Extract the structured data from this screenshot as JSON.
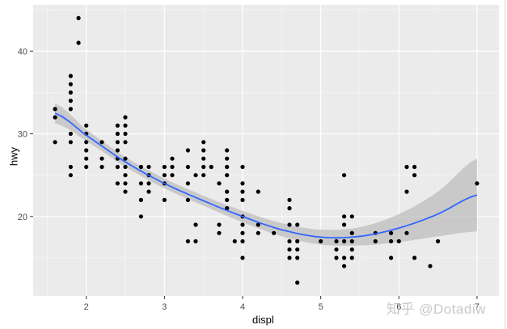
{
  "chart_data": {
    "type": "scatter",
    "title": "",
    "xlabel": "displ",
    "ylabel": "hwy",
    "xlim": [
      1.32,
      7.28
    ],
    "ylim": [
      10.4,
      45.6
    ],
    "x_ticks": [
      2,
      3,
      4,
      5,
      6,
      7
    ],
    "y_ticks": [
      20,
      30,
      40
    ],
    "grid": true,
    "legend": "none",
    "background": "#EBEBEB",
    "point_color": "#000000",
    "smooth_color": "#3366FF",
    "ribbon_color": "#BEBEBE",
    "points": [
      [
        1.6,
        33
      ],
      [
        1.6,
        32
      ],
      [
        1.6,
        29
      ],
      [
        1.8,
        37
      ],
      [
        1.8,
        36
      ],
      [
        1.8,
        35
      ],
      [
        1.8,
        34
      ],
      [
        1.8,
        33
      ],
      [
        1.8,
        30
      ],
      [
        1.8,
        29
      ],
      [
        1.8,
        26
      ],
      [
        1.8,
        25
      ],
      [
        1.9,
        44
      ],
      [
        1.9,
        41
      ],
      [
        2.0,
        31
      ],
      [
        2.0,
        30
      ],
      [
        2.0,
        29
      ],
      [
        2.0,
        28
      ],
      [
        2.0,
        27
      ],
      [
        2.0,
        26
      ],
      [
        2.2,
        29
      ],
      [
        2.2,
        27
      ],
      [
        2.2,
        26
      ],
      [
        2.4,
        31
      ],
      [
        2.4,
        30
      ],
      [
        2.4,
        29
      ],
      [
        2.4,
        28
      ],
      [
        2.4,
        27
      ],
      [
        2.4,
        26
      ],
      [
        2.4,
        24
      ],
      [
        2.5,
        32
      ],
      [
        2.5,
        31
      ],
      [
        2.5,
        30
      ],
      [
        2.5,
        29
      ],
      [
        2.5,
        27
      ],
      [
        2.5,
        26
      ],
      [
        2.5,
        25
      ],
      [
        2.5,
        24
      ],
      [
        2.5,
        23
      ],
      [
        2.7,
        26
      ],
      [
        2.7,
        24
      ],
      [
        2.7,
        22
      ],
      [
        2.7,
        20
      ],
      [
        2.8,
        26
      ],
      [
        2.8,
        25
      ],
      [
        2.8,
        24
      ],
      [
        2.8,
        23
      ],
      [
        3.0,
        26
      ],
      [
        3.0,
        25
      ],
      [
        3.0,
        24
      ],
      [
        3.0,
        22
      ],
      [
        3.1,
        27
      ],
      [
        3.1,
        26
      ],
      [
        3.1,
        25
      ],
      [
        3.3,
        28
      ],
      [
        3.3,
        26
      ],
      [
        3.3,
        24
      ],
      [
        3.3,
        22
      ],
      [
        3.3,
        17
      ],
      [
        3.4,
        25
      ],
      [
        3.4,
        19
      ],
      [
        3.4,
        17
      ],
      [
        3.5,
        29
      ],
      [
        3.5,
        28
      ],
      [
        3.5,
        27
      ],
      [
        3.5,
        26
      ],
      [
        3.5,
        25
      ],
      [
        3.6,
        26
      ],
      [
        3.7,
        24
      ],
      [
        3.7,
        19
      ],
      [
        3.7,
        18
      ],
      [
        3.8,
        28
      ],
      [
        3.8,
        27
      ],
      [
        3.8,
        26
      ],
      [
        3.8,
        25
      ],
      [
        3.8,
        23
      ],
      [
        3.8,
        22
      ],
      [
        3.8,
        21
      ],
      [
        3.9,
        17
      ],
      [
        4.0,
        26
      ],
      [
        4.0,
        24
      ],
      [
        4.0,
        23
      ],
      [
        4.0,
        22
      ],
      [
        4.0,
        20
      ],
      [
        4.0,
        19
      ],
      [
        4.0,
        18
      ],
      [
        4.0,
        17
      ],
      [
        4.0,
        15
      ],
      [
        4.2,
        23
      ],
      [
        4.2,
        19
      ],
      [
        4.2,
        18
      ],
      [
        4.4,
        18
      ],
      [
        4.6,
        22
      ],
      [
        4.6,
        21
      ],
      [
        4.6,
        19
      ],
      [
        4.6,
        17
      ],
      [
        4.6,
        16
      ],
      [
        4.6,
        15
      ],
      [
        4.7,
        19
      ],
      [
        4.7,
        17
      ],
      [
        4.7,
        16
      ],
      [
        4.7,
        15
      ],
      [
        4.7,
        12
      ],
      [
        5.0,
        17
      ],
      [
        5.2,
        17
      ],
      [
        5.2,
        16
      ],
      [
        5.2,
        15
      ],
      [
        5.3,
        25
      ],
      [
        5.3,
        20
      ],
      [
        5.3,
        19
      ],
      [
        5.3,
        17
      ],
      [
        5.3,
        15
      ],
      [
        5.3,
        14
      ],
      [
        5.4,
        20
      ],
      [
        5.4,
        18
      ],
      [
        5.4,
        17
      ],
      [
        5.4,
        16
      ],
      [
        5.4,
        15
      ],
      [
        5.7,
        18
      ],
      [
        5.7,
        17
      ],
      [
        5.9,
        18
      ],
      [
        5.9,
        17
      ],
      [
        5.9,
        15
      ],
      [
        6.1,
        26
      ],
      [
        6.1,
        23
      ],
      [
        6.1,
        18
      ],
      [
        6.0,
        17
      ],
      [
        6.2,
        25
      ],
      [
        6.2,
        15
      ],
      [
        6.5,
        17
      ],
      [
        6.2,
        26
      ],
      [
        6.4,
        14
      ],
      [
        7.0,
        24
      ]
    ],
    "smooth": {
      "method": "loess",
      "x": [
        1.6,
        2.0,
        2.5,
        3.0,
        3.5,
        4.0,
        4.5,
        5.0,
        5.5,
        6.0,
        6.5,
        7.0
      ],
      "y": [
        32.5,
        29.8,
        26.6,
        24.0,
        21.9,
        20.0,
        18.4,
        17.5,
        17.6,
        18.6,
        20.3,
        22.6
      ],
      "lo": [
        31.3,
        29.1,
        26.0,
        23.4,
        21.3,
        19.3,
        17.6,
        16.6,
        16.5,
        16.9,
        17.6,
        18.2
      ],
      "hi": [
        33.7,
        30.5,
        27.2,
        24.6,
        22.5,
        20.7,
        19.2,
        18.4,
        18.7,
        20.3,
        23.0,
        27.0
      ]
    }
  },
  "axes": {
    "xlabel": "displ",
    "ylabel": "hwy"
  },
  "watermark": "知乎 @Dotadiw"
}
